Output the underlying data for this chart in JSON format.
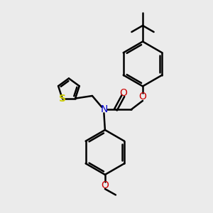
{
  "background_color": "#ebebeb",
  "bond_color": "#000000",
  "n_color": "#0000cc",
  "o_color": "#cc0000",
  "s_color": "#cccc00",
  "line_width": 1.8,
  "figsize": [
    3.0,
    3.0
  ],
  "dpi": 100,
  "xlim": [
    0,
    10
  ],
  "ylim": [
    0,
    10
  ]
}
